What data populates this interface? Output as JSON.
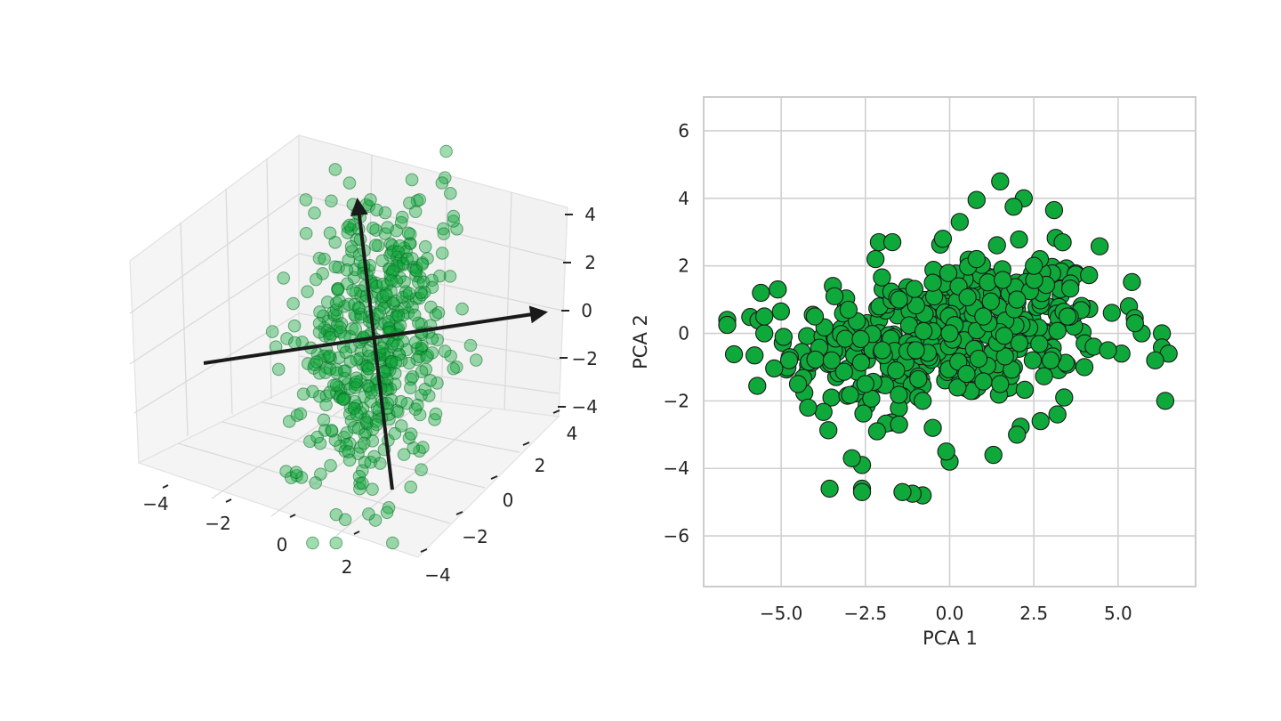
{
  "chart_data": [
    {
      "type": "scatter",
      "projection": "3d",
      "title": "",
      "xlabel": "",
      "ylabel": "",
      "zlabel": "",
      "xlim": [
        -4.5,
        4.5
      ],
      "ylim": [
        -4.5,
        4.5
      ],
      "zlim": [
        -4.5,
        4.5
      ],
      "x_ticks": [
        -4,
        -2,
        0,
        2
      ],
      "x_tick_labels": [
        "−4",
        "−2",
        "0",
        "2"
      ],
      "y_ticks": [
        -4,
        -2,
        0,
        2,
        4
      ],
      "y_tick_labels": [
        "−4",
        "−2",
        "0",
        "2",
        "4"
      ],
      "z_ticks": [
        -4,
        -2,
        0,
        2,
        4
      ],
      "z_tick_labels": [
        "−4",
        "−2",
        "0",
        "2",
        "4"
      ],
      "grid": true,
      "marker_color": "#0fa83a",
      "marker_alpha": 0.4,
      "point_count": 500,
      "distribution": "3D Gaussian cloud centered at origin, elongated along two principal axes",
      "principal_axis_arrows": [
        {
          "from": [
            -4.0,
            0.0,
            -1.0
          ],
          "to": [
            4.5,
            0.0,
            1.5
          ]
        },
        {
          "from": [
            0.5,
            -3.5,
            -2.0
          ],
          "to": [
            -0.5,
            1.0,
            4.0
          ]
        }
      ],
      "arrow_color": "#1a1a1a"
    },
    {
      "type": "scatter",
      "title": "",
      "xlabel": "PCA 1",
      "ylabel": "PCA 2",
      "xlim": [
        -7.3,
        7.3
      ],
      "ylim": [
        -7.5,
        7.0
      ],
      "x_ticks": [
        -5.0,
        -2.5,
        0.0,
        2.5,
        5.0
      ],
      "x_tick_labels": [
        "−5.0",
        "−2.5",
        "0.0",
        "2.5",
        "5.0"
      ],
      "y_ticks": [
        -6,
        -4,
        -2,
        0,
        2,
        4,
        6
      ],
      "y_tick_labels": [
        "−6",
        "−4",
        "−2",
        "0",
        "2",
        "4",
        "6"
      ],
      "grid": true,
      "marker_color": "#0fa83a",
      "marker_edge_color": "#1a1a1a",
      "point_count": 500,
      "sample_points": [
        [
          -6.6,
          0.4
        ],
        [
          -6.6,
          0.25
        ],
        [
          6.5,
          -0.6
        ],
        [
          6.4,
          -2.0
        ],
        [
          6.1,
          -0.8
        ],
        [
          1.5,
          4.5
        ],
        [
          2.2,
          4.0
        ],
        [
          3.1,
          3.65
        ],
        [
          0.8,
          3.95
        ],
        [
          1.9,
          3.75
        ],
        [
          -0.8,
          -4.8
        ],
        [
          -1.1,
          -4.75
        ],
        [
          -1.4,
          -4.7
        ],
        [
          -2.6,
          -4.6
        ],
        [
          -2.6,
          -4.7
        ],
        [
          -2.6,
          -3.9
        ],
        [
          -2.9,
          -3.7
        ],
        [
          0.0,
          -3.8
        ],
        [
          -0.1,
          -3.5
        ],
        [
          1.3,
          -3.6
        ],
        [
          -4.2,
          -2.2
        ],
        [
          -4.5,
          -1.5
        ],
        [
          -5.5,
          0.0
        ],
        [
          -5.5,
          0.5
        ],
        [
          -5.6,
          1.2
        ],
        [
          -5.1,
          1.3
        ],
        [
          5.7,
          0.0
        ],
        [
          5.1,
          -0.6
        ],
        [
          4.7,
          -0.5
        ],
        [
          5.5,
          0.3
        ],
        [
          -2.2,
          2.2
        ],
        [
          -2.1,
          2.7
        ],
        [
          -1.7,
          2.7
        ],
        [
          -0.2,
          2.8
        ],
        [
          0.3,
          3.3
        ],
        [
          2.7,
          -2.6
        ],
        [
          3.2,
          -2.4
        ],
        [
          3.4,
          -1.9
        ],
        [
          2.0,
          -3.0
        ],
        [
          -1.5,
          -2.7
        ],
        [
          -0.5,
          -2.8
        ],
        [
          0.0,
          0.0
        ],
        [
          1.0,
          0.5
        ],
        [
          -1.0,
          -0.5
        ],
        [
          0.5,
          -1.2
        ],
        [
          -0.5,
          1.5
        ],
        [
          2.0,
          1.0
        ],
        [
          -2.0,
          -0.5
        ],
        [
          3.0,
          -0.8
        ],
        [
          -3.0,
          0.7
        ],
        [
          1.5,
          -1.5
        ],
        [
          -1.5,
          1.0
        ],
        [
          4.0,
          -1.0
        ],
        [
          -4.0,
          0.5
        ],
        [
          2.5,
          2.0
        ],
        [
          -2.5,
          -1.5
        ],
        [
          0.8,
          2.2
        ],
        [
          -0.8,
          -2.0
        ],
        [
          3.5,
          0.5
        ],
        [
          -3.5,
          -0.8
        ]
      ]
    }
  ]
}
